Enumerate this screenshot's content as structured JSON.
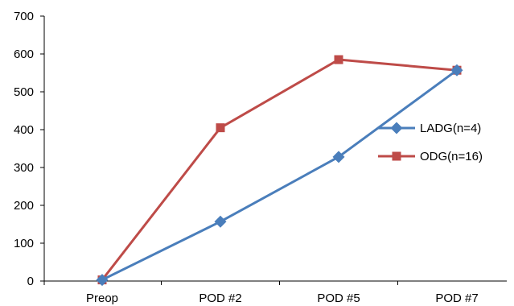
{
  "chart_data": {
    "type": "line",
    "categories": [
      "Preop",
      "POD #2",
      "POD #5",
      "POD #7"
    ],
    "ylim": [
      0,
      700
    ],
    "yticks": [
      0,
      100,
      200,
      300,
      400,
      500,
      600,
      700
    ],
    "grid": false,
    "legend_position": "right",
    "series": [
      {
        "name": "LADG(n=4)",
        "values": [
          3,
          157,
          328,
          557
        ],
        "color": "#4a7ebb",
        "marker": "diamond"
      },
      {
        "name": "ODG(n=16)",
        "values": [
          3,
          405,
          585,
          557
        ],
        "color": "#be4b48",
        "marker": "square"
      }
    ]
  }
}
